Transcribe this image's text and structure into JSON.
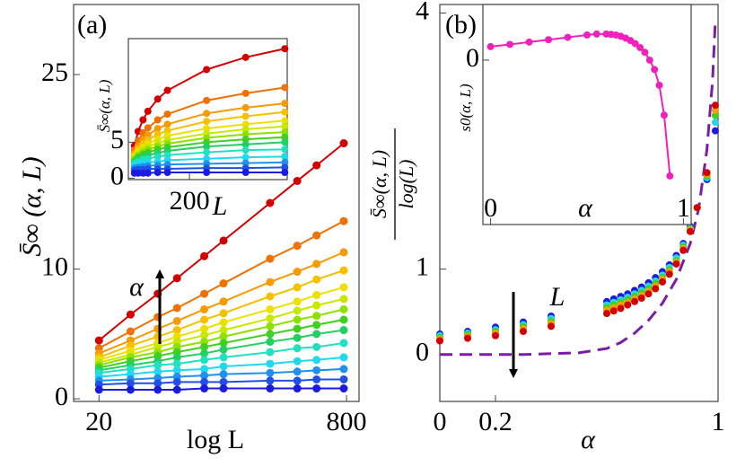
{
  "chart_data": [
    {
      "type": "line",
      "panel_label": "(a)",
      "xlabel": "log L",
      "ylabel": "S̄∞ (α, L)",
      "annotation": "α",
      "xscale": "log",
      "xlim": [
        13.7,
        964
      ],
      "ylim": [
        -0.2,
        30.4
      ],
      "xticks": [
        20,
        800
      ],
      "yticks": [
        0,
        10,
        25
      ],
      "x": [
        20,
        32,
        48,
        64,
        96,
        128,
        256,
        384,
        512,
        768
      ],
      "series": [
        {
          "color": "#d40000",
          "values": [
            4.5,
            6.5,
            8.1,
            9.3,
            11.0,
            12.2,
            15.1,
            16.8,
            18.0,
            19.7
          ]
        },
        {
          "color": "#f07000",
          "values": [
            3.9,
            5.2,
            6.3,
            7.0,
            8.1,
            8.9,
            10.8,
            11.8,
            12.6,
            13.7
          ]
        },
        {
          "color": "#f59a00",
          "values": [
            3.5,
            4.5,
            5.4,
            6.0,
            6.9,
            7.5,
            9.0,
            9.8,
            10.4,
            11.3
          ]
        },
        {
          "color": "#f5c000",
          "values": [
            3.2,
            4.1,
            4.8,
            5.3,
            6.1,
            6.6,
            7.9,
            8.6,
            9.2,
            9.9
          ]
        },
        {
          "color": "#ede000",
          "values": [
            3.0,
            3.7,
            4.3,
            4.8,
            5.4,
            5.9,
            6.9,
            7.5,
            8.0,
            8.6
          ]
        },
        {
          "color": "#c8e800",
          "values": [
            2.8,
            3.4,
            4.0,
            4.4,
            4.9,
            5.3,
            6.2,
            6.8,
            7.2,
            7.7
          ]
        },
        {
          "color": "#8ee000",
          "values": [
            2.6,
            3.2,
            3.6,
            4.0,
            4.4,
            4.8,
            5.6,
            6.1,
            6.4,
            6.9
          ]
        },
        {
          "color": "#40d020",
          "values": [
            2.4,
            2.9,
            3.3,
            3.6,
            4.0,
            4.3,
            5.0,
            5.4,
            5.7,
            6.1
          ]
        },
        {
          "color": "#20d060",
          "values": [
            2.2,
            2.6,
            2.9,
            3.2,
            3.5,
            3.8,
            4.4,
            4.7,
            5.0,
            5.3
          ]
        },
        {
          "color": "#20e0c0",
          "values": [
            2.0,
            2.3,
            2.6,
            2.7,
            3.0,
            3.2,
            3.6,
            3.9,
            4.0,
            4.3
          ]
        },
        {
          "color": "#20d8f0",
          "values": [
            1.7,
            1.9,
            2.1,
            2.2,
            2.3,
            2.5,
            2.7,
            2.9,
            3.0,
            3.2
          ]
        },
        {
          "color": "#2090f0",
          "values": [
            1.4,
            1.5,
            1.6,
            1.7,
            1.8,
            1.9,
            2.0,
            2.1,
            2.2,
            2.3
          ]
        },
        {
          "color": "#2050e8",
          "values": [
            1.1,
            1.2,
            1.2,
            1.3,
            1.3,
            1.3,
            1.4,
            1.4,
            1.5,
            1.5
          ]
        },
        {
          "color": "#1a1ae0",
          "values": [
            0.7,
            0.7,
            0.7,
            0.7,
            0.8,
            0.8,
            0.8,
            0.8,
            0.8,
            0.8
          ]
        }
      ]
    },
    {
      "type": "line",
      "xlabel": "L",
      "ylabel": "S̄∞(α, L)",
      "xlim": [
        0,
        520
      ],
      "ylim": [
        -0.2,
        19.4
      ],
      "xticks": [
        200
      ],
      "yticks": [
        0,
        5
      ]
    },
    {
      "type": "scatter",
      "panel_label": "(b)",
      "xlabel": "α",
      "ylabel": {
        "numerator": "S̄∞(α, L)",
        "denominator": "log(L)"
      },
      "annotation": "L",
      "xlim": [
        0,
        1
      ],
      "ylim": [
        -0.55,
        4.1
      ],
      "xticks": [
        0,
        0.2,
        1
      ],
      "yticks": [
        0,
        1,
        4
      ],
      "x": [
        0,
        0.1,
        0.2,
        0.3,
        0.4,
        0.6,
        0.625,
        0.65,
        0.675,
        0.7,
        0.725,
        0.75,
        0.775,
        0.8,
        0.825,
        0.85,
        0.875,
        0.9,
        0.925,
        0.96,
        0.99
      ],
      "series": [
        {
          "color": "#1a1ae0",
          "values": [
            0.24,
            0.27,
            0.32,
            0.38,
            0.45,
            0.62,
            0.65,
            0.68,
            0.71,
            0.75,
            0.79,
            0.84,
            0.9,
            0.97,
            1.05,
            1.16,
            1.3,
            1.5,
            1.72,
            2.05,
            2.62
          ]
        },
        {
          "color": "#20d8f0",
          "values": [
            0.22,
            0.25,
            0.29,
            0.35,
            0.42,
            0.58,
            0.61,
            0.64,
            0.67,
            0.71,
            0.75,
            0.8,
            0.86,
            0.93,
            1.02,
            1.13,
            1.28,
            1.48,
            1.72,
            2.07,
            2.72
          ]
        },
        {
          "color": "#40d020",
          "values": [
            0.2,
            0.23,
            0.27,
            0.33,
            0.39,
            0.55,
            0.58,
            0.61,
            0.64,
            0.68,
            0.72,
            0.77,
            0.83,
            0.9,
            0.99,
            1.1,
            1.26,
            1.47,
            1.72,
            2.09,
            2.8
          ]
        },
        {
          "color": "#f5a000",
          "values": [
            0.18,
            0.21,
            0.25,
            0.3,
            0.36,
            0.52,
            0.55,
            0.58,
            0.61,
            0.65,
            0.69,
            0.74,
            0.8,
            0.88,
            0.97,
            1.08,
            1.24,
            1.46,
            1.72,
            2.11,
            2.86
          ]
        },
        {
          "color": "#d40000",
          "values": [
            0.16,
            0.19,
            0.22,
            0.27,
            0.33,
            0.48,
            0.51,
            0.54,
            0.58,
            0.62,
            0.66,
            0.71,
            0.77,
            0.85,
            0.94,
            1.06,
            1.22,
            1.44,
            1.72,
            2.13,
            2.92
          ]
        }
      ],
      "reference_curve": {
        "color": "#7b1fa2",
        "style": "dashed",
        "x": [
          0,
          0.3,
          0.5,
          0.6,
          0.65,
          0.7,
          0.75,
          0.8,
          0.85,
          0.9,
          0.93,
          0.96,
          0.98,
          0.99
        ],
        "y": [
          0,
          0,
          0.02,
          0.07,
          0.14,
          0.25,
          0.4,
          0.6,
          0.88,
          1.3,
          1.7,
          2.4,
          3.2,
          3.9
        ]
      }
    },
    {
      "type": "line",
      "xlabel": "α",
      "ylabel": "s0(α, L)",
      "color": "#ee22bb",
      "xlim": [
        -0.04,
        1.04
      ],
      "ylim": [
        -1.046,
        0.354
      ],
      "xticks": [
        0,
        1
      ],
      "yticks": [
        0
      ],
      "x": [
        0,
        0.1,
        0.2,
        0.3,
        0.4,
        0.5,
        0.55,
        0.6,
        0.625,
        0.65,
        0.675,
        0.7,
        0.725,
        0.75,
        0.775,
        0.8,
        0.825,
        0.85,
        0.875,
        0.9,
        0.93
      ],
      "values": [
        0.086,
        0.1,
        0.115,
        0.13,
        0.145,
        0.16,
        0.166,
        0.166,
        0.164,
        0.16,
        0.152,
        0.14,
        0.125,
        0.105,
        0.08,
        0.05,
        0.0,
        -0.06,
        -0.16,
        -0.35,
        -0.737
      ]
    }
  ]
}
